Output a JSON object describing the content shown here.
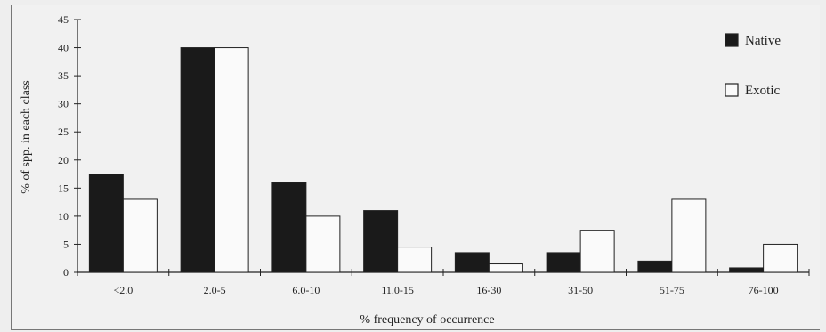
{
  "chart_data": {
    "type": "bar",
    "title": "",
    "xlabel": "% frequency of occurrence",
    "ylabel": "% of spp. in each class",
    "ylim": [
      0,
      45
    ],
    "yticks": [
      0,
      5,
      10,
      15,
      20,
      25,
      30,
      35,
      40,
      45
    ],
    "legend": "top-right",
    "grid": false,
    "categories": [
      "<2.0",
      "2.0-5",
      "6.0-10",
      "11.0-15",
      "16-30",
      "31-50",
      "51-75",
      "76-100"
    ],
    "series": [
      {
        "name": "Native",
        "color": "#1a1a1a",
        "values": [
          17.5,
          40,
          16,
          11,
          3.5,
          3.5,
          2,
          0.8
        ]
      },
      {
        "name": "Exotic",
        "color": "#fafafa",
        "values": [
          13,
          40,
          10,
          4.5,
          1.5,
          7.5,
          13,
          5
        ]
      }
    ]
  }
}
